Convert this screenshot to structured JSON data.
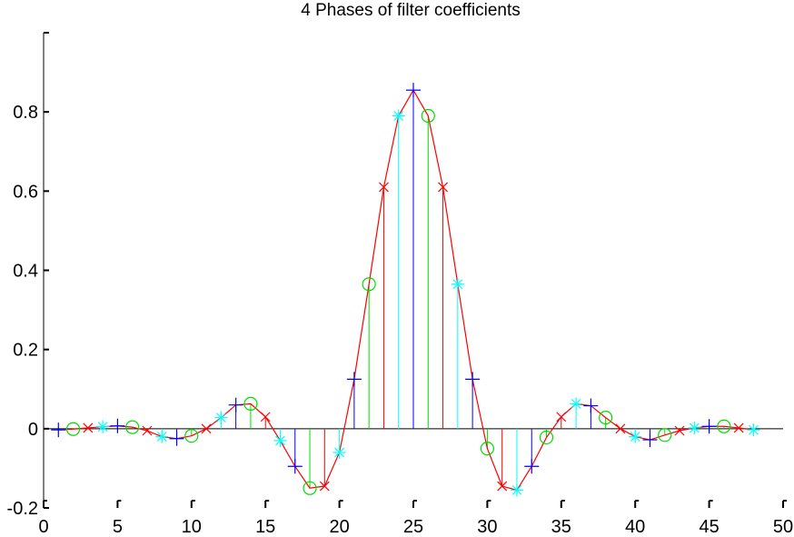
{
  "chart_data": {
    "type": "stem",
    "title": "4 Phases of filter coefficients",
    "xlabel": "",
    "ylabel": "",
    "xlim": [
      0,
      50
    ],
    "ylim": [
      -0.2,
      1.0
    ],
    "xticks": [
      0,
      5,
      10,
      15,
      20,
      25,
      30,
      35,
      40,
      45,
      50
    ],
    "yticks": [
      -0.2,
      0,
      0.2,
      0.4,
      0.6,
      0.8
    ],
    "xtick_labels": [
      "0",
      "5",
      "10",
      "15",
      "20",
      "25",
      "30",
      "35",
      "40",
      "45",
      "50"
    ],
    "ytick_labels": [
      "-0.2",
      "0",
      "0.2",
      "0.4",
      "0.6",
      "0.8"
    ],
    "grid": false,
    "legend": "none",
    "baseline": 0,
    "line_series": {
      "name": "",
      "color": "#ff0000",
      "x": [
        1,
        2,
        3,
        4,
        5,
        6,
        7,
        8,
        9,
        10,
        11,
        12,
        13,
        14,
        15,
        16,
        17,
        18,
        19,
        20,
        21,
        22,
        23,
        24,
        25,
        26,
        27,
        28,
        29,
        30,
        31,
        32,
        33,
        34,
        35,
        36,
        37,
        38,
        39,
        40,
        41,
        42,
        43,
        44,
        45,
        46,
        47,
        48
      ],
      "y": [
        -0.003,
        -0.001,
        0.002,
        0.005,
        0.007,
        0.004,
        -0.005,
        -0.02,
        -0.025,
        -0.018,
        0.0,
        0.028,
        0.06,
        0.063,
        0.03,
        -0.03,
        -0.095,
        -0.15,
        -0.145,
        -0.06,
        0.125,
        0.365,
        0.61,
        0.79,
        0.855,
        0.79,
        0.61,
        0.365,
        0.125,
        -0.05,
        -0.145,
        -0.155,
        -0.095,
        -0.022,
        0.03,
        0.063,
        0.058,
        0.028,
        0.0,
        -0.02,
        -0.028,
        -0.016,
        -0.005,
        0.002,
        0.006,
        0.006,
        0.002,
        -0.003
      ]
    },
    "series": [
      {
        "name": "",
        "marker": "plus",
        "color": "#0000ff",
        "x": [
          1,
          5,
          9,
          13,
          17,
          21,
          25,
          29,
          33,
          37,
          41,
          45
        ],
        "y": [
          -0.003,
          0.007,
          -0.025,
          0.06,
          -0.095,
          0.125,
          0.855,
          0.125,
          -0.095,
          0.058,
          -0.028,
          0.006
        ]
      },
      {
        "name": "",
        "marker": "circle",
        "color": "#00dd00",
        "x": [
          2,
          6,
          10,
          14,
          18,
          22,
          26,
          30,
          34,
          38,
          42,
          46
        ],
        "y": [
          -0.001,
          0.004,
          -0.018,
          0.063,
          -0.15,
          0.365,
          0.79,
          -0.05,
          -0.022,
          0.028,
          -0.016,
          0.006
        ]
      },
      {
        "name": "",
        "marker": "cross",
        "color": "#ff0000",
        "x": [
          3,
          7,
          11,
          15,
          19,
          23,
          27,
          31,
          35,
          39,
          43,
          47
        ],
        "y": [
          0.002,
          -0.005,
          0.0,
          0.03,
          -0.145,
          0.61,
          0.61,
          -0.145,
          0.03,
          0.0,
          -0.005,
          0.002
        ]
      },
      {
        "name": "",
        "marker": "star",
        "color": "#00ffff",
        "x": [
          4,
          8,
          12,
          16,
          20,
          24,
          28,
          32,
          36,
          40,
          44,
          48
        ],
        "y": [
          0.005,
          -0.02,
          0.028,
          -0.03,
          -0.06,
          0.79,
          0.365,
          -0.155,
          0.063,
          -0.02,
          0.002,
          -0.003
        ]
      }
    ]
  }
}
